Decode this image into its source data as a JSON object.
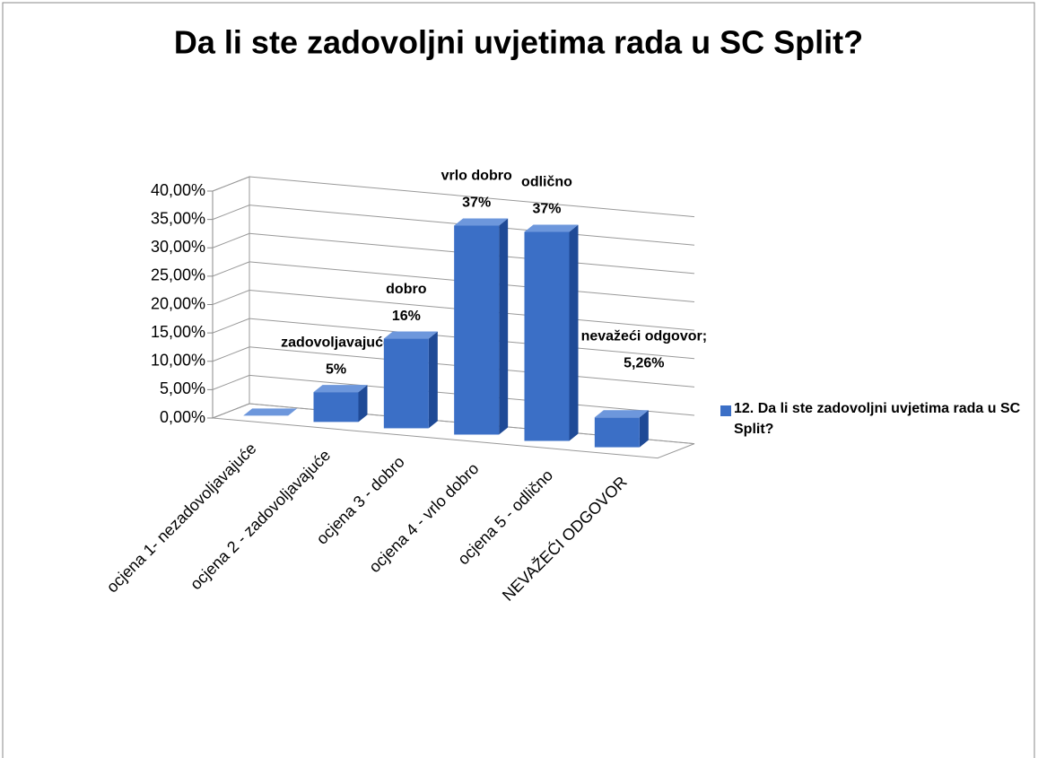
{
  "chart_data": {
    "type": "bar3d",
    "title": "Da li ste zadovoljni uvjetima rada u SC Split?",
    "categories": [
      "ocjena 1- nezadovoljavajuće",
      "ocjena 2 - zadovoljavajuće",
      "ocjena 3 - dobro",
      "ocjena 4 - vrlo dobro",
      "ocjena 5 - odlično",
      "NEVAŽEĆI ODGOVOR"
    ],
    "series": [
      {
        "name": "12. Da li ste zadovoljni uvjetima rada u SC Split?",
        "color": "#3b6fc6",
        "values": [
          0,
          5.26,
          15.79,
          36.84,
          36.84,
          5.26
        ],
        "label_names": [
          null,
          "zadovoljavajuće",
          "dobro",
          "vrlo dobro",
          "odlično",
          "nevažeći odgovor;"
        ],
        "value_labels": [
          null,
          "5%",
          "16%",
          "37%",
          "37%",
          "5,26%"
        ]
      }
    ],
    "ylim": [
      0,
      40
    ],
    "yticks": [
      {
        "value": 0,
        "label": "0,00%"
      },
      {
        "value": 5,
        "label": "5,00%"
      },
      {
        "value": 10,
        "label": "10,00%"
      },
      {
        "value": 15,
        "label": "15,00%"
      },
      {
        "value": 20,
        "label": "20,00%"
      },
      {
        "value": 25,
        "label": "25,00%"
      },
      {
        "value": 30,
        "label": "30,00%"
      },
      {
        "value": 35,
        "label": "35,00%"
      },
      {
        "value": 40,
        "label": "40,00%"
      }
    ],
    "grid": true,
    "legend": "right"
  }
}
